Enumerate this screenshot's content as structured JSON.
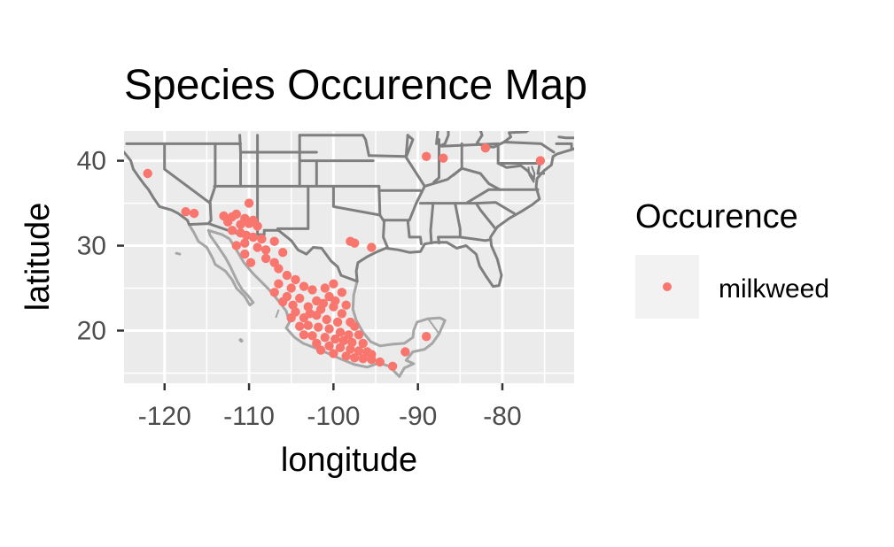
{
  "chart_data": {
    "type": "scatter",
    "title": "Species Occurence Map",
    "xlabel": "longitude",
    "ylabel": "latitude",
    "xlim": [
      -124.8,
      -71.5
    ],
    "ylim": [
      13.8,
      43.5
    ],
    "x_ticks": [
      -120,
      -110,
      -100,
      -90,
      -80
    ],
    "x_tick_labels": [
      "-120",
      "-110",
      "-100",
      "-90",
      "-80"
    ],
    "y_ticks": [
      20,
      30,
      40
    ],
    "y_tick_labels": [
      "20",
      "30",
      "40"
    ],
    "grid": true,
    "background": "map",
    "legend": {
      "title": "Occurence",
      "position": "right",
      "entries": [
        "milkweed"
      ]
    },
    "colors": {
      "panel": "#ebebeb",
      "grid": "#ffffff",
      "borders": "#7f7f7f",
      "coast": "#a6a6a6",
      "point": "#f8766d"
    },
    "series": [
      {
        "name": "milkweed",
        "color": "#f8766d",
        "points": [
          [
            -122.0,
            38.5
          ],
          [
            -117.5,
            34.0
          ],
          [
            -116.5,
            33.8
          ],
          [
            -110.0,
            35.0
          ],
          [
            -113.0,
            33.5
          ],
          [
            -112.0,
            33.4
          ],
          [
            -111.5,
            33.7
          ],
          [
            -110.5,
            33.2
          ],
          [
            -109.5,
            33.0
          ],
          [
            -112.5,
            32.8
          ],
          [
            -111.0,
            32.5
          ],
          [
            -110.0,
            32.6
          ],
          [
            -109.0,
            32.3
          ],
          [
            -112.0,
            31.8
          ],
          [
            -111.0,
            31.5
          ],
          [
            -110.3,
            31.2
          ],
          [
            -109.5,
            31.0
          ],
          [
            -108.5,
            30.8
          ],
          [
            -110.5,
            30.3
          ],
          [
            -109.0,
            29.8
          ],
          [
            -108.0,
            29.5
          ],
          [
            -111.5,
            30.0
          ],
          [
            -107.0,
            30.5
          ],
          [
            -106.0,
            29.2
          ],
          [
            -108.0,
            28.5
          ],
          [
            -107.0,
            28.0
          ],
          [
            -106.5,
            27.3
          ],
          [
            -110.5,
            29.0
          ],
          [
            -109.8,
            28.0
          ],
          [
            -105.5,
            26.5
          ],
          [
            -104.5,
            26.0
          ],
          [
            -106.5,
            25.5
          ],
          [
            -105.0,
            25.0
          ],
          [
            -103.5,
            25.2
          ],
          [
            -107.0,
            24.5
          ],
          [
            -105.5,
            24.0
          ],
          [
            -104.0,
            23.8
          ],
          [
            -102.5,
            24.8
          ],
          [
            -101.0,
            25.0
          ],
          [
            -100.0,
            25.5
          ],
          [
            -99.0,
            24.5
          ],
          [
            -100.5,
            24.0
          ],
          [
            -102.0,
            23.5
          ],
          [
            -103.0,
            22.8
          ],
          [
            -101.5,
            22.5
          ],
          [
            -100.0,
            22.8
          ],
          [
            -99.0,
            22.0
          ],
          [
            -98.5,
            23.0
          ],
          [
            -104.5,
            22.2
          ],
          [
            -105.0,
            21.5
          ],
          [
            -103.5,
            21.5
          ],
          [
            -102.0,
            21.8
          ],
          [
            -100.8,
            21.3
          ],
          [
            -99.5,
            21.0
          ],
          [
            -98.0,
            21.0
          ],
          [
            -97.5,
            20.5
          ],
          [
            -104.0,
            20.5
          ],
          [
            -103.0,
            20.6
          ],
          [
            -101.8,
            20.4
          ],
          [
            -100.5,
            20.2
          ],
          [
            -99.2,
            19.8
          ],
          [
            -98.2,
            19.5
          ],
          [
            -97.0,
            19.5
          ],
          [
            -103.5,
            19.5
          ],
          [
            -102.5,
            19.4
          ],
          [
            -101.0,
            19.2
          ],
          [
            -99.8,
            19.0
          ],
          [
            -98.8,
            18.8
          ],
          [
            -97.8,
            18.6
          ],
          [
            -96.5,
            18.5
          ],
          [
            -102.0,
            18.5
          ],
          [
            -100.5,
            18.2
          ],
          [
            -99.2,
            18.0
          ],
          [
            -98.0,
            17.8
          ],
          [
            -97.0,
            17.6
          ],
          [
            -96.0,
            17.5
          ],
          [
            -101.5,
            17.7
          ],
          [
            -100.0,
            17.3
          ],
          [
            -98.5,
            17.0
          ],
          [
            -97.5,
            16.8
          ],
          [
            -96.5,
            16.7
          ],
          [
            -95.5,
            16.6
          ],
          [
            -94.5,
            16.3
          ],
          [
            -95.5,
            17.2
          ],
          [
            -102.8,
            22.0
          ],
          [
            -101.2,
            23.2
          ],
          [
            -99.8,
            23.5
          ],
          [
            -104.8,
            23.0
          ],
          [
            -106.0,
            23.4
          ],
          [
            -97.5,
            30.3
          ],
          [
            -95.5,
            29.8
          ],
          [
            -98.0,
            30.5
          ],
          [
            -89.0,
            40.5
          ],
          [
            -87.0,
            40.3
          ],
          [
            -82.0,
            41.5
          ],
          [
            -75.5,
            40.0
          ],
          [
            -89.0,
            19.3
          ],
          [
            -91.5,
            17.5
          ],
          [
            -93.0,
            15.8
          ]
        ]
      }
    ]
  }
}
